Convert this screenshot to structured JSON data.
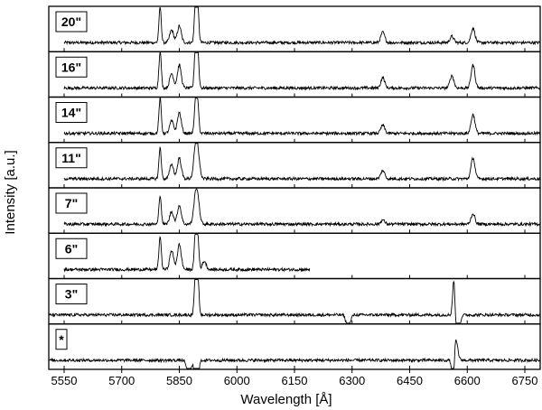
{
  "chart_data": {
    "type": "line",
    "xlabel": "Wavelength [Å]",
    "ylabel": "Intensity [a.u.]",
    "xlim": [
      5510,
      6790
    ],
    "xticks": [
      5550,
      5700,
      5850,
      6000,
      6150,
      6300,
      6450,
      6600,
      6750
    ],
    "grid": false,
    "legend": "none",
    "line_color": "#000000",
    "panels": [
      {
        "label": "20\"",
        "x_range": [
          5550,
          6790
        ],
        "peaks": [
          [
            5800,
            0.85
          ],
          [
            5850,
            0.4
          ],
          [
            5892,
            0.9
          ],
          [
            5898,
            0.85
          ],
          [
            5830,
            0.3
          ],
          [
            6380,
            0.25
          ],
          [
            6560,
            0.15
          ],
          [
            6615,
            0.35
          ]
        ]
      },
      {
        "label": "16\"",
        "x_range": [
          5550,
          6790
        ],
        "peaks": [
          [
            5800,
            0.9
          ],
          [
            5850,
            0.55
          ],
          [
            5892,
            0.95
          ],
          [
            5898,
            0.9
          ],
          [
            5830,
            0.35
          ],
          [
            6380,
            0.25
          ],
          [
            6560,
            0.3
          ],
          [
            6615,
            0.55
          ]
        ]
      },
      {
        "label": "14\"",
        "x_range": [
          5550,
          6790
        ],
        "peaks": [
          [
            5800,
            0.85
          ],
          [
            5850,
            0.5
          ],
          [
            5892,
            0.75
          ],
          [
            5898,
            0.7
          ],
          [
            5830,
            0.3
          ],
          [
            6380,
            0.2
          ],
          [
            6615,
            0.45
          ]
        ]
      },
      {
        "label": "11\"",
        "x_range": [
          5550,
          6790
        ],
        "peaks": [
          [
            5800,
            0.75
          ],
          [
            5850,
            0.5
          ],
          [
            5892,
            0.6
          ],
          [
            5898,
            0.55
          ],
          [
            5830,
            0.35
          ],
          [
            6380,
            0.2
          ],
          [
            6615,
            0.5
          ]
        ]
      },
      {
        "label": "7\"",
        "x_range": [
          5550,
          6790
        ],
        "peaks": [
          [
            5800,
            0.7
          ],
          [
            5850,
            0.45
          ],
          [
            5892,
            0.55
          ],
          [
            5898,
            0.5
          ],
          [
            5830,
            0.3
          ],
          [
            6380,
            0.1
          ],
          [
            6615,
            0.25
          ]
        ]
      },
      {
        "label": "6\"",
        "x_range": [
          5550,
          6190
        ],
        "peaks": [
          [
            5800,
            0.8
          ],
          [
            5850,
            0.6
          ],
          [
            5892,
            0.85
          ],
          [
            5898,
            0.8
          ],
          [
            5830,
            0.45
          ],
          [
            5915,
            0.2
          ]
        ]
      },
      {
        "label": "3\"",
        "x_range": [
          5510,
          6790
        ],
        "peaks": [
          [
            5892,
            0.95
          ],
          [
            5898,
            0.95
          ],
          [
            6290,
            -0.35
          ],
          [
            6565,
            0.9
          ],
          [
            6575,
            -0.6
          ]
        ]
      },
      {
        "label": "*",
        "x_range": [
          5510,
          6790
        ],
        "peaks": [
          [
            5875,
            -0.45
          ],
          [
            5892,
            -0.7
          ],
          [
            5898,
            -0.65
          ],
          [
            6563,
            -0.85
          ],
          [
            6570,
            0.5
          ]
        ]
      }
    ]
  }
}
